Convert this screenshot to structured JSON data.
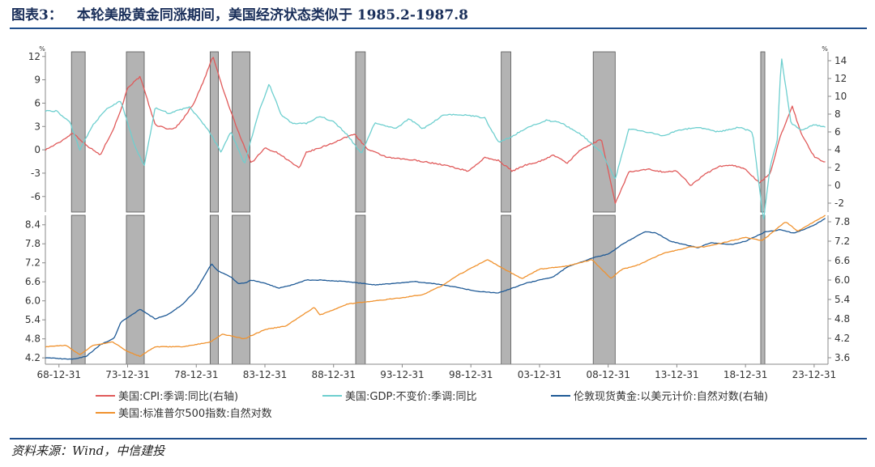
{
  "figure": {
    "number": "图表3：",
    "title": "本轮美股黄金同涨期间，美国经济状态类似于 1985.2-1987.8",
    "source": "资料来源：Wind，中信建投"
  },
  "colors": {
    "cpi": "#e05a5a",
    "gdp": "#6ecfcf",
    "gold": "#1f5a96",
    "gold_dark": "#2a6e6a",
    "sp500": "#f0922e",
    "sp500_light": "#d9b23a",
    "shade": "#b3b3b3",
    "axis": "#888888",
    "text": "#333333"
  },
  "chart_data": [
    {
      "type": "line",
      "panel": "top",
      "unit_left": "%",
      "unit_right": "%",
      "yticks_left": [
        "12",
        "9",
        "6",
        "3",
        "0",
        "-3",
        "-6"
      ],
      "yticks_right": [
        "14",
        "12",
        "10",
        "8",
        "6",
        "4",
        "2",
        "0",
        "-2"
      ],
      "ylim_left": [
        -8,
        12.6
      ],
      "ylim_right": [
        -3,
        15
      ],
      "series": [
        {
          "name": "美国:CPI:季调:同比(右轴)",
          "axis": "right",
          "color": "cpi",
          "x": [
            1968,
            1969,
            1970,
            1971,
            1972,
            1973,
            1973.5,
            1974,
            1974.9,
            1976,
            1977,
            1977.5,
            1978,
            1978.8,
            1979.5,
            1980.2,
            1981,
            1982,
            1983,
            1984,
            1985,
            1986.5,
            1987,
            1988,
            1989,
            1990.5,
            1991.5,
            1993,
            1995,
            1997,
            1998.8,
            2000,
            2001,
            2002,
            2003,
            2004,
            2005,
            2006,
            2007,
            2008.5,
            2009.5,
            2010.5,
            2012,
            2013,
            2014,
            2015,
            2016,
            2017,
            2018,
            2019,
            2020,
            2020.8,
            2021.5,
            2022.4,
            2023,
            2024,
            2024.8
          ],
          "y": [
            4,
            4.8,
            5.9,
            4.5,
            3.4,
            6.5,
            8.5,
            11,
            12.2,
            6.8,
            6.3,
            6.5,
            7.4,
            9.2,
            11.6,
            14.5,
            10.5,
            6.2,
            2.5,
            4.2,
            3.6,
            1.9,
            3.7,
            4.2,
            4.8,
            5.8,
            4.0,
            3.1,
            2.8,
            2.3,
            1.6,
            3.1,
            2.8,
            1.6,
            2.3,
            2.7,
            3.4,
            2.5,
            4.0,
            5.2,
            -2.0,
            1.5,
            1.8,
            1.5,
            1.6,
            0.0,
            1.2,
            2.1,
            2.3,
            1.8,
            0.3,
            1.3,
            5.4,
            8.9,
            6.0,
            3.2,
            2.6
          ]
        },
        {
          "name": "美国:GDP:不变价:季调:同比",
          "axis": "left",
          "color": "gdp",
          "x": [
            1968,
            1968.8,
            1969.8,
            1970.5,
            1971.5,
            1972.5,
            1973.5,
            1974.5,
            1975.2,
            1976,
            1977,
            1978.5,
            1979.8,
            1980.8,
            1981.5,
            1982.5,
            1983.5,
            1984.3,
            1985.2,
            1986,
            1987,
            1988,
            1989,
            1990,
            1991,
            1992,
            1993.5,
            1994.5,
            1995.5,
            1997,
            1998.5,
            2000,
            2001,
            2002,
            2003,
            2004.5,
            2005.5,
            2007,
            2008.5,
            2009.5,
            2010.5,
            2012,
            2013,
            2014,
            2015.5,
            2017,
            2018.5,
            2019.5,
            2020.3,
            2020.8,
            2021.3,
            2021.6,
            2022.3,
            2023,
            2024,
            2024.8
          ],
          "y": [
            5.0,
            5.0,
            3.5,
            0.0,
            3.3,
            5.3,
            6.3,
            0.5,
            -2.0,
            5.4,
            4.7,
            5.5,
            2.7,
            -0.3,
            2.4,
            -1.8,
            4.6,
            8.5,
            4.4,
            3.4,
            3.4,
            4.3,
            3.6,
            1.9,
            -0.5,
            3.5,
            2.7,
            4.0,
            2.7,
            4.5,
            4.5,
            4.1,
            1.0,
            1.7,
            2.8,
            3.8,
            3.5,
            2.0,
            -0.3,
            -3.8,
            2.7,
            2.2,
            1.8,
            2.5,
            2.9,
            2.3,
            2.9,
            2.3,
            -9.1,
            -2.0,
            1.2,
            12.0,
            3.5,
            2.5,
            3.2,
            2.9
          ]
        }
      ],
      "shaded_periods": [
        [
          1969.9,
          1970.9
        ],
        [
          1973.9,
          1975.2
        ],
        [
          1980.0,
          1980.6
        ],
        [
          1981.6,
          1982.9
        ],
        [
          1990.6,
          1991.3
        ],
        [
          2001.2,
          2001.9
        ],
        [
          2007.9,
          2009.5
        ],
        [
          2020.1,
          2020.4
        ]
      ]
    },
    {
      "type": "line",
      "panel": "bottom",
      "yticks_left": [
        "8.4",
        "7.8",
        "7.2",
        "6.6",
        "6.0",
        "5.4",
        "4.8",
        "4.2"
      ],
      "yticks_right": [
        "7.8",
        "7.2",
        "6.6",
        "6.0",
        "5.4",
        "4.8",
        "4.2",
        "3.6"
      ],
      "ylim_left": [
        4.0,
        8.7
      ],
      "ylim_right": [
        3.4,
        8.0
      ],
      "series": [
        {
          "name": "伦敦现货黄金:以美元计价:自然对数(右轴)",
          "axis": "right",
          "color": "gold",
          "x": [
            1968,
            1970,
            1971,
            1972,
            1973,
            1973.5,
            1974.9,
            1976,
            1977,
            1978,
            1979,
            1980.1,
            1980.5,
            1981.5,
            1982,
            1982.5,
            1983,
            1984,
            1985,
            1986,
            1987,
            1988,
            1990,
            1992,
            1995,
            1997,
            1999.5,
            2001,
            2003,
            2005,
            2006,
            2008,
            2009,
            2010,
            2011.7,
            2012.5,
            2013.5,
            2015.5,
            2016.5,
            2018,
            2019,
            2020.5,
            2021.5,
            2022.5,
            2023.5,
            2024,
            2024.8
          ],
          "y": [
            3.6,
            3.55,
            3.65,
            4.0,
            4.2,
            4.7,
            5.1,
            4.8,
            4.95,
            5.25,
            5.7,
            6.5,
            6.3,
            6.1,
            5.9,
            5.9,
            6.0,
            5.9,
            5.75,
            5.85,
            6.0,
            6.0,
            5.95,
            5.85,
            5.95,
            5.85,
            5.65,
            5.6,
            5.9,
            6.1,
            6.4,
            6.7,
            6.8,
            7.1,
            7.5,
            7.45,
            7.2,
            7.0,
            7.15,
            7.1,
            7.2,
            7.5,
            7.55,
            7.45,
            7.6,
            7.7,
            7.9
          ]
        },
        {
          "name": "美国:标准普尔500指数:自然对数",
          "axis": "left",
          "color": "sp500",
          "x": [
            1968,
            1969.5,
            1970.5,
            1971.5,
            1972.9,
            1974,
            1974.9,
            1976,
            1978,
            1980,
            1980.9,
            1982.5,
            1984,
            1985.5,
            1987.6,
            1988,
            1990,
            1992,
            1994,
            1995.5,
            1997,
            1998,
            2000.2,
            2001,
            2002.7,
            2004,
            2006,
            2007.8,
            2009.2,
            2010,
            2011,
            2013,
            2015,
            2016,
            2018,
            2019,
            2020.2,
            2020.5,
            2021.9,
            2022.8,
            2024,
            2024.8
          ],
          "y": [
            4.55,
            4.6,
            4.3,
            4.6,
            4.7,
            4.4,
            4.25,
            4.55,
            4.55,
            4.7,
            4.95,
            4.8,
            5.1,
            5.2,
            5.8,
            5.55,
            5.9,
            6.0,
            6.1,
            6.2,
            6.5,
            6.8,
            7.3,
            7.1,
            6.7,
            7.0,
            7.1,
            7.3,
            6.7,
            7.0,
            7.1,
            7.5,
            7.7,
            7.7,
            7.9,
            8.0,
            7.9,
            8.0,
            8.5,
            8.2,
            8.5,
            8.7
          ]
        }
      ],
      "shaded_periods": [
        [
          1969.9,
          1970.9
        ],
        [
          1973.9,
          1975.2
        ],
        [
          1980.0,
          1980.6
        ],
        [
          1981.6,
          1982.9
        ],
        [
          1990.6,
          1991.3
        ],
        [
          2001.2,
          2001.9
        ],
        [
          2007.9,
          2009.5
        ],
        [
          2020.1,
          2020.4
        ]
      ]
    }
  ],
  "x_axis": {
    "ticks": [
      {
        "value": 1968.99,
        "label": "68-12-31"
      },
      {
        "value": 1973.99,
        "label": "73-12-31"
      },
      {
        "value": 1978.99,
        "label": "78-12-31"
      },
      {
        "value": 1983.99,
        "label": "83-12-31"
      },
      {
        "value": 1988.99,
        "label": "88-12-31"
      },
      {
        "value": 1993.99,
        "label": "93-12-31"
      },
      {
        "value": 1998.99,
        "label": "98-12-31"
      },
      {
        "value": 2003.99,
        "label": "03-12-31"
      },
      {
        "value": 2008.99,
        "label": "08-12-31"
      },
      {
        "value": 2013.99,
        "label": "13-12-31"
      },
      {
        "value": 2018.99,
        "label": "18-12-31"
      },
      {
        "value": 2023.99,
        "label": "23-12-31"
      }
    ],
    "range": [
      1968,
      2025
    ]
  },
  "legend": [
    {
      "label": "美国:CPI:季调:同比(右轴)",
      "color": "cpi"
    },
    {
      "label": "美国:GDP:不变价:季调:同比",
      "color": "gdp"
    },
    {
      "label": "伦敦现货黄金:以美元计价:自然对数(右轴)",
      "color": "gold"
    },
    {
      "label": "美国:标准普尔500指数:自然对数",
      "color": "sp500"
    }
  ]
}
